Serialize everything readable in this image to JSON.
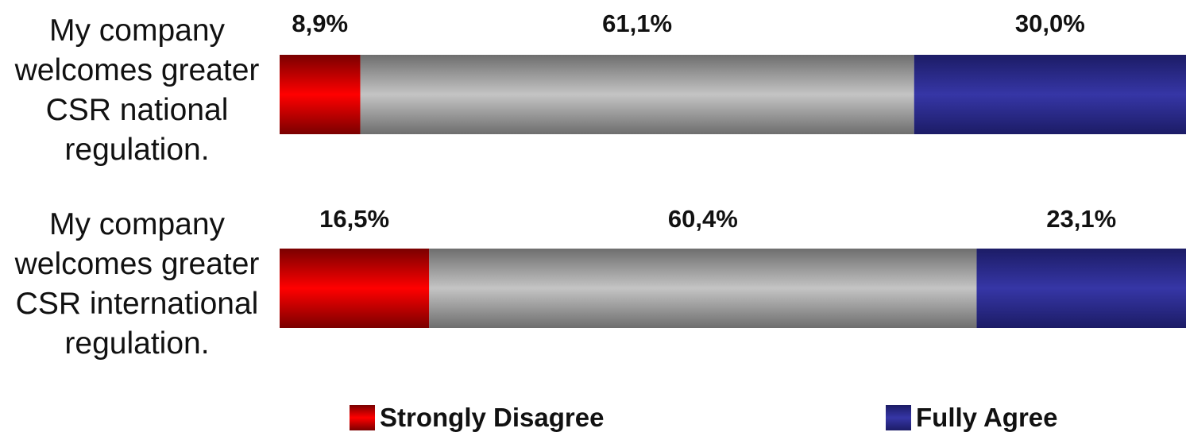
{
  "chart_data": {
    "type": "bar",
    "orientation": "horizontal",
    "stacked": true,
    "categories": [
      "My company welcomes greater CSR national regulation.",
      "My company welcomes greater CSR international regulation."
    ],
    "series": [
      {
        "name": "Strongly Disagree",
        "values": [
          8.9,
          16.5
        ],
        "labels": [
          "8,9%",
          "16,5%"
        ],
        "color": "#e00000"
      },
      {
        "name": "",
        "values": [
          61.1,
          60.4
        ],
        "labels": [
          "61,1%",
          "60,4%"
        ],
        "color": "#b8b8b8"
      },
      {
        "name": "Fully Agree",
        "values": [
          30.0,
          23.1
        ],
        "labels": [
          "30,0%",
          "23,1%"
        ],
        "color": "#2e2e96"
      }
    ],
    "xlim": [
      0,
      100
    ],
    "grid": false,
    "legend_placement": "bottom",
    "title": "",
    "xlabel": "",
    "ylabel": ""
  },
  "legend": {
    "items": [
      {
        "label": "Strongly Disagree",
        "color": "#e00000"
      },
      {
        "label": "Fully Agree",
        "color": "#2e2e96"
      }
    ]
  }
}
